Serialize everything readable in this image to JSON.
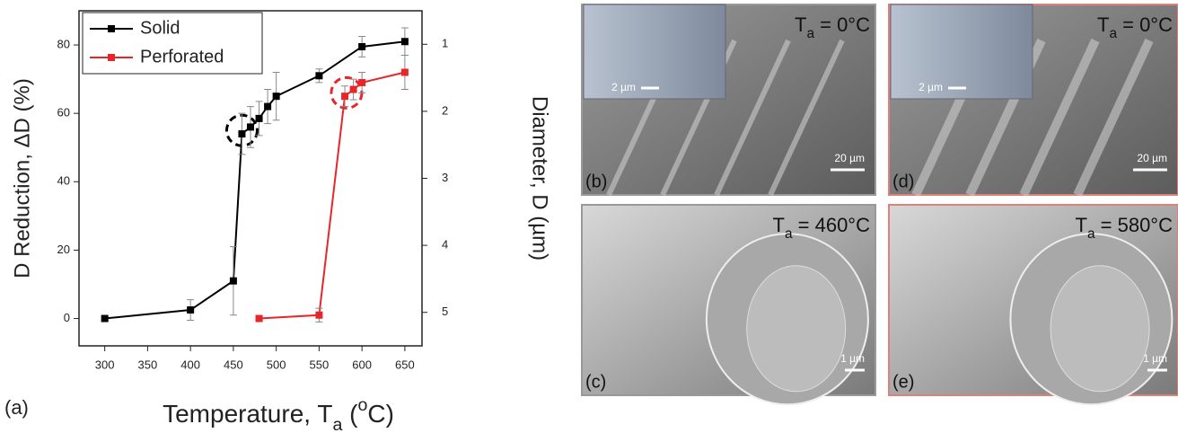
{
  "chart_data": {
    "type": "line",
    "panel_label": "(a)",
    "y_label": "D Reduction, ΔD (%)",
    "y2_label": "Diameter, D (µm)",
    "x_label_parts": [
      "Temperature, T",
      "a",
      " (",
      "o",
      "C)"
    ],
    "xlim": [
      270,
      670
    ],
    "xticks": [
      300,
      350,
      400,
      450,
      500,
      550,
      600,
      650
    ],
    "ylim": [
      -8,
      90
    ],
    "yticks": [
      0,
      20,
      40,
      60,
      80
    ],
    "y2lim": [
      5.5,
      0.5
    ],
    "y2ticks": [
      1,
      2,
      3,
      4,
      5
    ],
    "legend": "upper left",
    "series": [
      {
        "name": "Solid",
        "color": "#000000",
        "x": [
          300,
          400,
          450,
          460,
          470,
          480,
          490,
          500,
          550,
          600,
          650
        ],
        "values": [
          0,
          2.5,
          11,
          54,
          56,
          58.5,
          62,
          65,
          71,
          79.5,
          81
        ],
        "errors": [
          0.5,
          3,
          10,
          6,
          6,
          5,
          5,
          7,
          2,
          3,
          4
        ]
      },
      {
        "name": "Perforated",
        "color": "#e8262a",
        "x": [
          480,
          550,
          580,
          590,
          600,
          650
        ],
        "values": [
          0,
          1,
          65,
          67,
          69,
          72
        ],
        "errors": [
          0.5,
          2,
          3,
          3,
          3,
          5
        ]
      }
    ]
  },
  "images": [
    {
      "label": "(b)",
      "temp": [
        "T",
        "a",
        " = 0°C"
      ],
      "scale": "20 µm",
      "inset_scale": "2 µm"
    },
    {
      "label": "(c)",
      "temp": [
        "T",
        "a",
        " = 460°C"
      ],
      "scale": "1 µm"
    },
    {
      "label": "(d)",
      "temp": [
        "T",
        "a",
        " = 0°C"
      ],
      "scale": "20 µm",
      "inset_scale": "2 µm"
    },
    {
      "label": "(e)",
      "temp": [
        "T",
        "a",
        " = 580°C"
      ],
      "scale": "1 µm"
    }
  ]
}
